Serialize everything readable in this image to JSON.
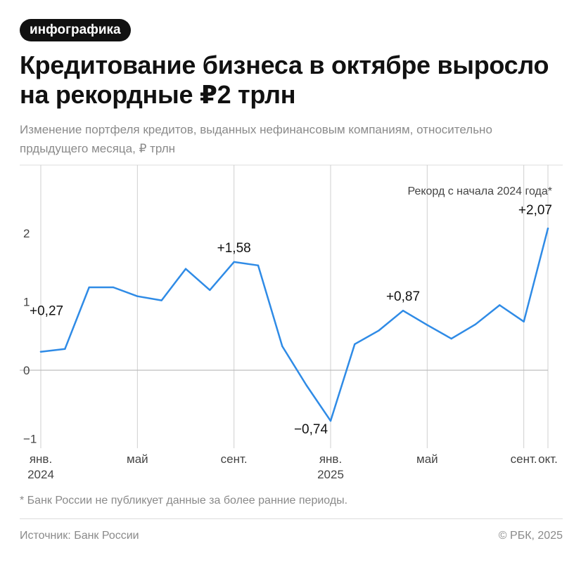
{
  "badge": "инфографика",
  "title": "Кредитование бизнеса в октябре выросло на рекордные ₽2 трлн",
  "subtitle": "Изменение портфеля кредитов, выданных нефинансовым компаниям, относительно прдыдущего месяца, ₽ трлн",
  "footnote": "* Банк России не публикует данные за более ранние периоды.",
  "source": "Источник: Банк России",
  "copyright": "© РБК, 2025",
  "colors": {
    "line": "#2f8be6",
    "grid": "#cfcfcf",
    "text": "#111111",
    "muted": "#8a8a8a"
  },
  "chart_data": {
    "type": "line",
    "x_months": [
      "2024-01",
      "2024-02",
      "2024-03",
      "2024-04",
      "2024-05",
      "2024-06",
      "2024-07",
      "2024-08",
      "2024-09",
      "2024-10",
      "2024-11",
      "2024-12",
      "2025-01",
      "2025-02",
      "2025-03",
      "2025-04",
      "2025-05",
      "2025-06",
      "2025-07",
      "2025-08",
      "2025-09",
      "2025-10"
    ],
    "values": [
      0.27,
      0.31,
      1.21,
      1.21,
      1.08,
      1.02,
      1.48,
      1.17,
      1.58,
      1.53,
      0.35,
      -0.22,
      -0.74,
      0.38,
      0.58,
      0.87,
      0.66,
      0.46,
      0.67,
      0.95,
      0.71,
      2.07
    ],
    "ylim": [
      -1,
      2.95
    ],
    "yticks": [
      "2",
      "1",
      "0",
      "−1"
    ],
    "ytick_values": [
      2,
      1,
      0,
      -1
    ],
    "xticks": [
      {
        "month": "2024-01",
        "label": "янв.",
        "sub": "2024"
      },
      {
        "month": "2024-05",
        "label": "май",
        "sub": ""
      },
      {
        "month": "2024-09",
        "label": "сент.",
        "sub": ""
      },
      {
        "month": "2025-01",
        "label": "янв.",
        "sub": "2025"
      },
      {
        "month": "2025-05",
        "label": "май",
        "sub": ""
      },
      {
        "month": "2025-09",
        "label": "сент.",
        "sub": ""
      },
      {
        "month": "2025-10",
        "label": "окт.",
        "sub": ""
      }
    ],
    "annotations": [
      {
        "month": "2024-01",
        "text": "+0,27"
      },
      {
        "month": "2024-09",
        "text": "+1,58"
      },
      {
        "month": "2025-01",
        "text": "−0,74"
      },
      {
        "month": "2025-04",
        "text": "+0,87"
      },
      {
        "month": "2025-10",
        "text": "+2,07"
      }
    ],
    "record_note": "Рекорд с начала 2024 года*",
    "grid": "vertical lines at labeled months; horizontal baseline at 0"
  }
}
